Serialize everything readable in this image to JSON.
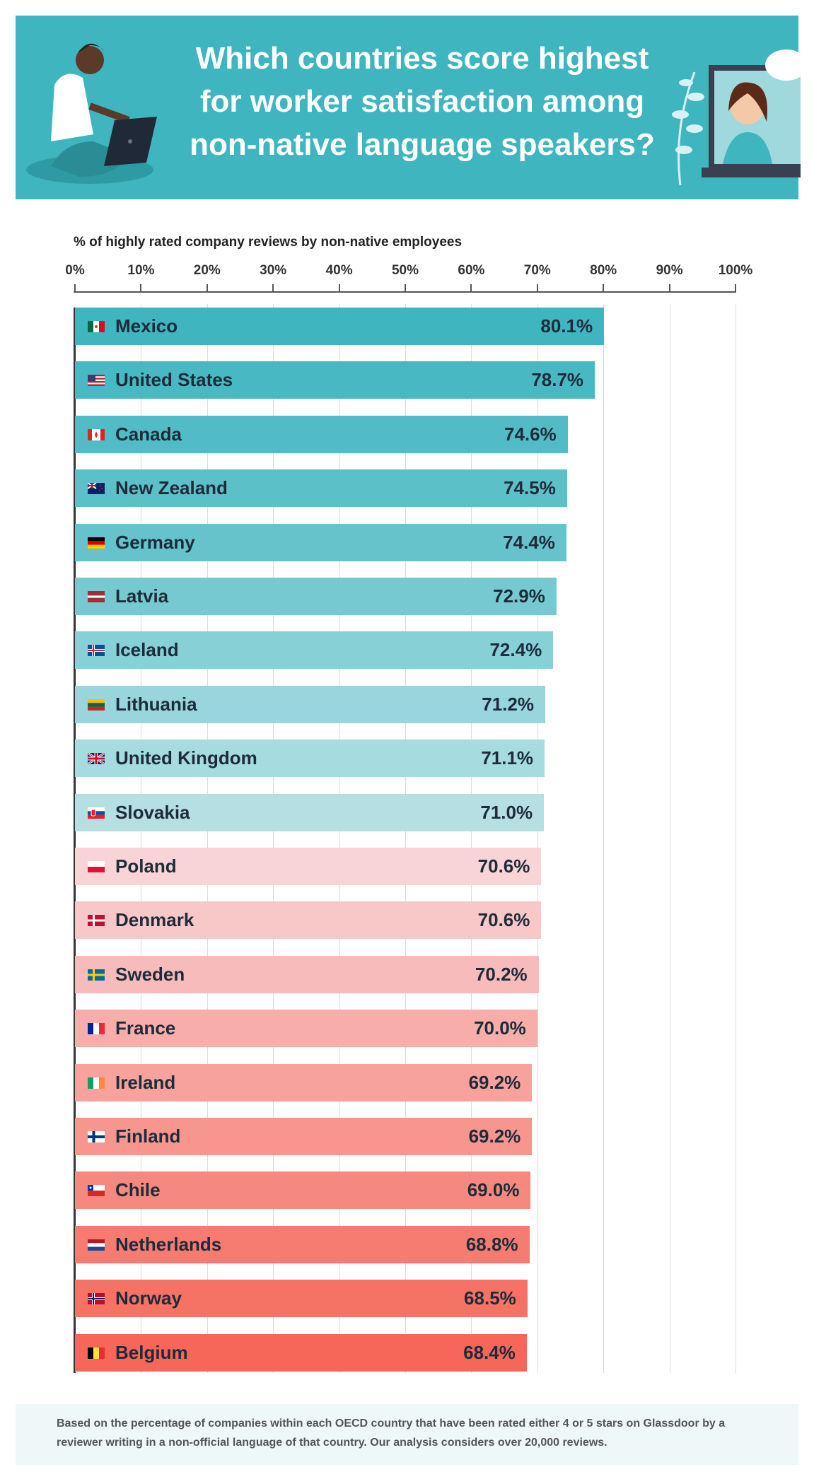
{
  "header": {
    "title_lines": [
      "Which countries score highest",
      "for worker satisfaction among",
      "non-native language speakers?"
    ]
  },
  "colors": {
    "header_bg": "#3fb5c0",
    "teal_top": "#3fb5c0",
    "teal_bottom": "#b5dfe2",
    "pink_top": "#f9d4d6",
    "red_bottom": "#f6675a"
  },
  "chart_data": {
    "type": "bar",
    "orientation": "horizontal",
    "xlabel": "% of highly rated company reviews by non-native employees",
    "xlim": [
      0,
      100
    ],
    "ticks": [
      "0%",
      "10%",
      "20%",
      "30%",
      "40%",
      "50%",
      "60%",
      "70%",
      "80%",
      "90%",
      "100%"
    ],
    "grid": true,
    "categories": [
      "Mexico",
      "United States",
      "Canada",
      "New Zealand",
      "Germany",
      "Latvia",
      "Iceland",
      "Lithuania",
      "United Kingdom",
      "Slovakia",
      "Poland",
      "Denmark",
      "Sweden",
      "France",
      "Ireland",
      "Finland",
      "Chile",
      "Netherlands",
      "Norway",
      "Belgium"
    ],
    "values": [
      80.1,
      78.7,
      74.6,
      74.5,
      74.4,
      72.9,
      72.4,
      71.2,
      71.1,
      71.0,
      70.6,
      70.6,
      70.2,
      70.0,
      69.2,
      69.2,
      69.0,
      68.8,
      68.5,
      68.4
    ],
    "value_labels": [
      "80.1%",
      "78.7%",
      "74.6%",
      "74.5%",
      "74.4%",
      "72.9%",
      "72.4%",
      "71.2%",
      "71.1%",
      "71.0%",
      "70.6%",
      "70.6%",
      "70.2%",
      "70.0%",
      "69.2%",
      "69.2%",
      "69.0%",
      "68.8%",
      "68.5%",
      "68.4%"
    ],
    "flag_icons": [
      "mexico-flag-icon",
      "united-states-flag-icon",
      "canada-flag-icon",
      "new-zealand-flag-icon",
      "germany-flag-icon",
      "latvia-flag-icon",
      "iceland-flag-icon",
      "lithuania-flag-icon",
      "united-kingdom-flag-icon",
      "slovakia-flag-icon",
      "poland-flag-icon",
      "denmark-flag-icon",
      "sweden-flag-icon",
      "france-flag-icon",
      "ireland-flag-icon",
      "finland-flag-icon",
      "chile-flag-icon",
      "netherlands-flag-icon",
      "norway-flag-icon",
      "belgium-flag-icon"
    ],
    "bar_colors": [
      "#3fb5c0",
      "#48b9c3",
      "#52bcc6",
      "#5cc0c9",
      "#66c3cc",
      "#77c9d1",
      "#87d0d6",
      "#98d6db",
      "#a6dbdf",
      "#b5dfe2",
      "#f9d4d6",
      "#f8c8c9",
      "#f8bbbb",
      "#f7aeab",
      "#f7a29c",
      "#f7958f",
      "#f6897f",
      "#f67c71",
      "#f67265",
      "#f6675a"
    ]
  },
  "footnote": "Based on the percentage of companies within each OECD country that have been rated either 4 or 5 stars on Glassdoor by a reviewer writing in a non-official language of that country. Our analysis considers over 20,000 reviews."
}
